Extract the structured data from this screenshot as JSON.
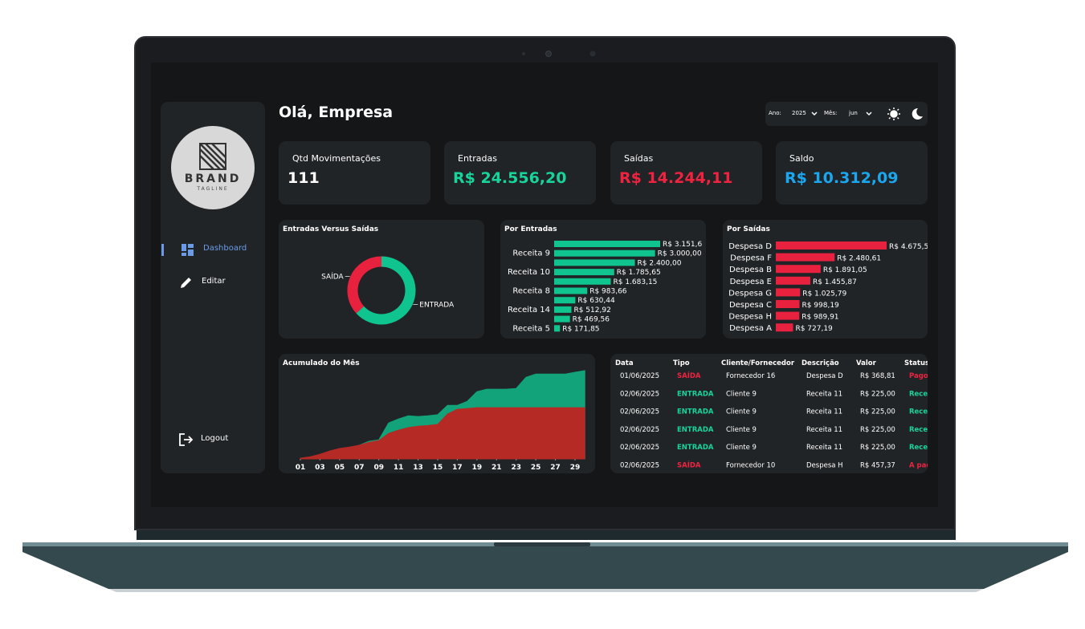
{
  "sidebar": {
    "brand": "BRAND",
    "tagline": "TAGLINE",
    "nav": [
      "Dashboard",
      "Editar",
      "Logout"
    ]
  },
  "header": {
    "greeting": "Olá, Empresa",
    "year_label": "Ano:",
    "year": "2025",
    "month_label": "Mês:",
    "month": "jun"
  },
  "kpis": [
    {
      "label": "Qtd Movimentações",
      "value": "111",
      "color": "#ffffff"
    },
    {
      "label": "Entradas",
      "value": "R$ 24.556,20",
      "color": "#19d49a"
    },
    {
      "label": "Saídas",
      "value": "R$ 14.244,11",
      "color": "#ef2340"
    },
    {
      "label": "Saldo",
      "value": "R$ 10.312,09",
      "color": "#1aa7f0"
    }
  ],
  "chart_data": [
    {
      "type": "pie",
      "title": "Entradas Versus Saídas",
      "categories": [
        "ENTRADA",
        "SAÍDA"
      ],
      "values": [
        24556.2,
        14244.11
      ],
      "colors": [
        "#10c48f",
        "#e8213f"
      ],
      "donut": true
    },
    {
      "type": "bar",
      "orientation": "horizontal",
      "title": "Por Entradas",
      "categories": [
        null,
        "Receita 9",
        null,
        "Receita 10",
        null,
        "Receita 8",
        null,
        "Receita 14",
        null,
        "Receita 5"
      ],
      "values": [
        3151.6,
        3000,
        2400,
        1785.65,
        1683.15,
        983.66,
        630.44,
        512.92,
        469.56,
        171.85
      ],
      "value_labels": [
        "R$ 3.151,6",
        "R$ 3.000,00",
        "R$ 2.400,00",
        "R$ 1.785,65",
        "R$ 1.683,15",
        "R$ 983,66",
        "R$ 630,44",
        "R$ 512,92",
        "R$ 469,56",
        "R$ 171,85"
      ],
      "color": "#10c48f"
    },
    {
      "type": "bar",
      "orientation": "horizontal",
      "title": "Por Saídas",
      "categories": [
        "Despesa D",
        "Despesa F",
        "Despesa B",
        "Despesa E",
        "Despesa G",
        "Despesa C",
        "Despesa H",
        "Despesa A"
      ],
      "values": [
        4675.5,
        2480.61,
        1891.05,
        1455.87,
        1025.79,
        998.19,
        989.91,
        727.19
      ],
      "value_labels": [
        "R$ 4.675,5",
        "R$ 2.480,61",
        "R$ 1.891,05",
        "R$ 1.455,87",
        "R$ 1.025,79",
        "R$ 998,19",
        "R$ 989,91",
        "R$ 727,19"
      ],
      "color": "#e8213f"
    },
    {
      "type": "area",
      "title": "Acumulado do Mês",
      "x": [
        1,
        2,
        3,
        4,
        5,
        6,
        7,
        8,
        9,
        10,
        11,
        12,
        13,
        14,
        15,
        16,
        17,
        18,
        19,
        20,
        21,
        22,
        23,
        24,
        25,
        26,
        27,
        28,
        29,
        30
      ],
      "series": [
        {
          "color": "#12a37a",
          "values": [
            200,
            500,
            1100,
            1600,
            2200,
            2900,
            3800,
            4900,
            5300,
            10000,
            11100,
            12000,
            11800,
            12000,
            12300,
            14900,
            14900,
            16000,
            18700,
            19400,
            19400,
            19400,
            19600,
            22700,
            23600,
            23600,
            23600,
            23600,
            24100,
            24556.2
          ]
        },
        {
          "color": "#b52a25",
          "values": [
            200,
            600,
            1300,
            2200,
            2900,
            3300,
            3800,
            4600,
            5100,
            7100,
            8000,
            8700,
            9100,
            9300,
            9600,
            12500,
            13800,
            14000,
            14244.11,
            14244.11,
            14244.11,
            14244.11,
            14244.11,
            14244.11,
            14244.11,
            14244.11,
            14244.11,
            14244.11,
            14244.11,
            14244.11
          ]
        }
      ],
      "xlim": [
        1,
        30
      ],
      "xticks": [
        {
          "value": 1,
          "label": "01"
        },
        {
          "value": 3,
          "label": "03"
        },
        {
          "value": 5,
          "label": "05"
        },
        {
          "value": 7,
          "label": "07"
        },
        {
          "value": 9,
          "label": "09"
        },
        11,
        13,
        15,
        17,
        19,
        21,
        23,
        25,
        27,
        29
      ],
      "ylim": [
        0,
        25000
      ]
    }
  ],
  "table": {
    "columns": [
      "Data",
      "Tipo",
      "Cliente/Fornecedor",
      "Descrição",
      "Valor",
      "Status"
    ],
    "rows": [
      [
        "01/06/2025",
        "SAÍDA",
        "Fornecedor 16",
        "Despesa D",
        "R$ 368,81",
        "Pago"
      ],
      [
        "02/06/2025",
        "ENTRADA",
        "Cliente 9",
        "Receita 11",
        "R$ 225,00",
        "Recebido"
      ],
      [
        "02/06/2025",
        "ENTRADA",
        "Cliente 9",
        "Receita 11",
        "R$ 225,00",
        "Recebido"
      ],
      [
        "02/06/2025",
        "ENTRADA",
        "Cliente 9",
        "Receita 11",
        "R$ 225,00",
        "Recebido"
      ],
      [
        "02/06/2025",
        "ENTRADA",
        "Cliente 9",
        "Receita 11",
        "R$ 225,00",
        "Recebido"
      ],
      [
        "02/06/2025",
        "SAÍDA",
        "Fornecedor 10",
        "Despesa H",
        "R$ 457,37",
        "A pagar"
      ]
    ],
    "row_colors": [
      "#ef2340",
      "#19d49a",
      "#19d49a",
      "#19d49a",
      "#19d49a",
      "#ef2340"
    ]
  }
}
